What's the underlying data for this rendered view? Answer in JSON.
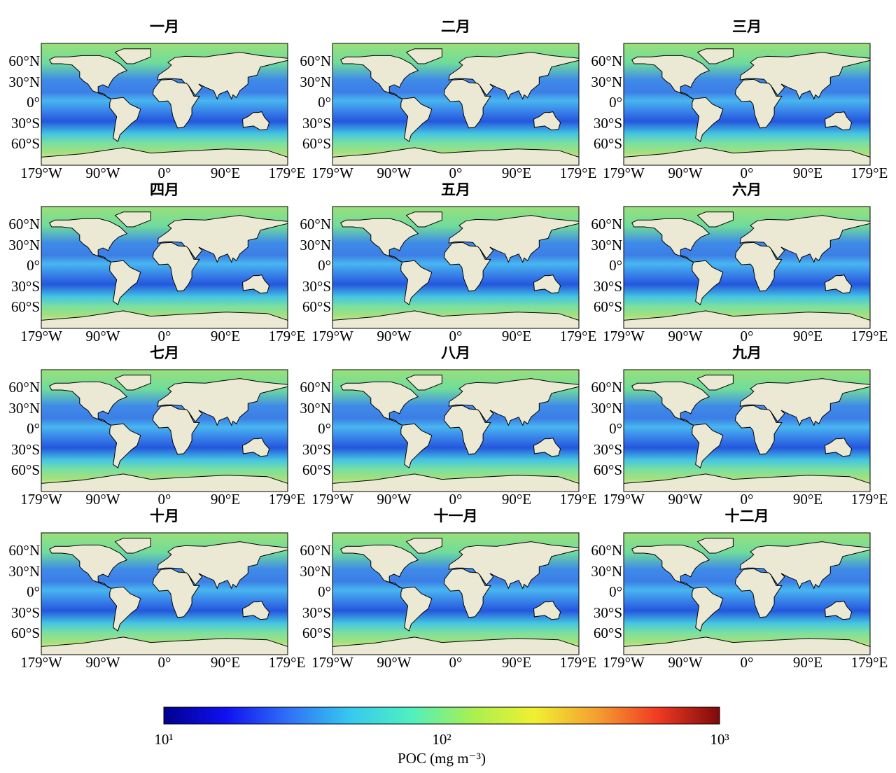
{
  "panels": [
    {
      "title": "一月"
    },
    {
      "title": "二月"
    },
    {
      "title": "三月"
    },
    {
      "title": "四月"
    },
    {
      "title": "五月"
    },
    {
      "title": "六月"
    },
    {
      "title": "七月"
    },
    {
      "title": "八月"
    },
    {
      "title": "九月"
    },
    {
      "title": "十月"
    },
    {
      "title": "十一月"
    },
    {
      "title": "十二月"
    }
  ],
  "lat_labels": [
    "60°N",
    "30°N",
    "0°",
    "30°S",
    "60°S"
  ],
  "lon_labels": [
    "179°W",
    "90°W",
    "0°",
    "90°E",
    "179°E"
  ],
  "colorbar": {
    "label": "POC (mg m⁻³)",
    "log_scale": true,
    "lim": [
      10,
      1000
    ],
    "ticks": [
      {
        "value": 10,
        "label": "10¹"
      },
      {
        "value": 100,
        "label": "10²"
      },
      {
        "value": 1000,
        "label": "10³"
      }
    ],
    "colormap": [
      "#00008f",
      "#1010f0",
      "#2f6ff7",
      "#36c8f0",
      "#4ef0c0",
      "#a8f050",
      "#f0f030",
      "#f5a030",
      "#f03a22",
      "#7f0a0a"
    ]
  }
}
